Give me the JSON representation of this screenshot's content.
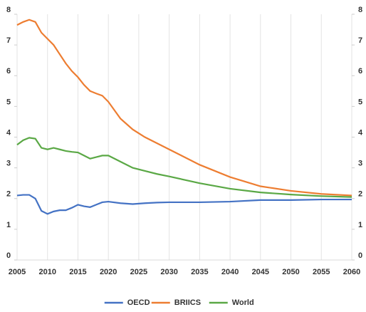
{
  "chart_data": {
    "type": "line",
    "x": [
      2005,
      2006,
      2007,
      2008,
      2009,
      2010,
      2011,
      2012,
      2013,
      2014,
      2015,
      2016,
      2017,
      2018,
      2019,
      2020,
      2022,
      2024,
      2026,
      2028,
      2030,
      2035,
      2040,
      2045,
      2050,
      2055,
      2060
    ],
    "series": [
      {
        "name": "OECD",
        "color": "#4472c4",
        "values": [
          2.1,
          2.12,
          2.12,
          2.0,
          1.6,
          1.5,
          1.58,
          1.62,
          1.62,
          1.7,
          1.8,
          1.75,
          1.72,
          1.8,
          1.88,
          1.9,
          1.85,
          1.82,
          1.85,
          1.87,
          1.88,
          1.88,
          1.9,
          1.95,
          1.95,
          1.97,
          1.97
        ]
      },
      {
        "name": "BRIICS",
        "color": "#ed7d31",
        "values": [
          7.65,
          7.75,
          7.82,
          7.75,
          7.4,
          7.2,
          7.0,
          6.7,
          6.4,
          6.15,
          5.95,
          5.7,
          5.5,
          5.42,
          5.35,
          5.15,
          4.6,
          4.25,
          4.0,
          3.8,
          3.6,
          3.1,
          2.7,
          2.4,
          2.25,
          2.15,
          2.1
        ]
      },
      {
        "name": "World",
        "color": "#5aa845",
        "values": [
          3.75,
          3.9,
          3.98,
          3.95,
          3.65,
          3.6,
          3.65,
          3.6,
          3.55,
          3.52,
          3.5,
          3.4,
          3.3,
          3.35,
          3.4,
          3.4,
          3.2,
          3.0,
          2.9,
          2.8,
          2.72,
          2.5,
          2.32,
          2.2,
          2.13,
          2.08,
          2.05
        ]
      }
    ],
    "xlim": [
      2005,
      2060
    ],
    "xticks": [
      2005,
      2010,
      2015,
      2020,
      2025,
      2030,
      2035,
      2040,
      2045,
      2050,
      2055,
      2060
    ],
    "ylim": [
      0,
      8
    ],
    "yticks": [
      0,
      1,
      2,
      3,
      4,
      5,
      6,
      7,
      8
    ],
    "y2lim": [
      0,
      8
    ],
    "y2ticks": [
      0,
      1,
      2,
      3,
      4,
      5,
      6,
      7,
      8
    ],
    "grid": "x",
    "legend": "bottom"
  }
}
